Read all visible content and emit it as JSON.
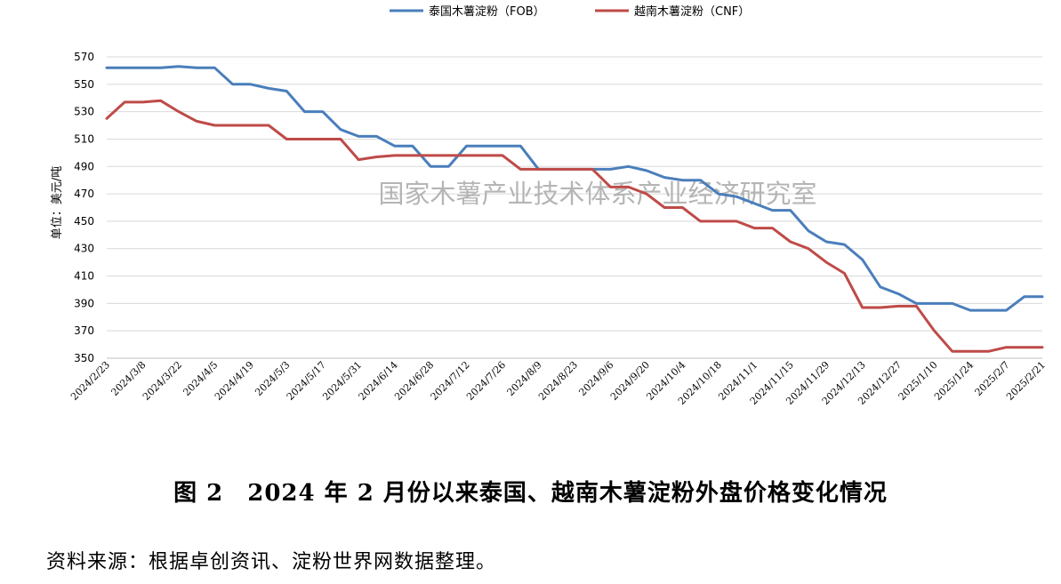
{
  "chart_data": {
    "type": "line",
    "ylabel": "单位：美元/吨",
    "ylim": [
      350,
      570
    ],
    "yticks": [
      350,
      370,
      390,
      410,
      430,
      450,
      470,
      490,
      510,
      530,
      550,
      570
    ],
    "grid": true,
    "legend_position": "top-center",
    "x_tick_labels": [
      "2024/2/23",
      "2024/3/8",
      "2024/3/22",
      "2024/4/5",
      "2024/4/19",
      "2024/5/3",
      "2024/5/17",
      "2024/5/31",
      "2024/6/14",
      "2024/6/28",
      "2024/7/12",
      "2024/7/26",
      "2024/8/9",
      "2024/8/23",
      "2024/9/6",
      "2024/9/20",
      "2024/10/4",
      "2024/10/18",
      "2024/11/1",
      "2024/11/15",
      "2024/11/29",
      "2024/12/13",
      "2024/12/27",
      "2025/1/10",
      "2025/1/24",
      "2025/2/7",
      "2025/2/21"
    ],
    "x": [
      "2024/2/23",
      "2024/3/1",
      "2024/3/8",
      "2024/3/15",
      "2024/3/22",
      "2024/3/29",
      "2024/4/5",
      "2024/4/12",
      "2024/4/19",
      "2024/4/26",
      "2024/5/3",
      "2024/5/10",
      "2024/5/17",
      "2024/5/24",
      "2024/5/31",
      "2024/6/7",
      "2024/6/14",
      "2024/6/21",
      "2024/6/28",
      "2024/7/5",
      "2024/7/12",
      "2024/7/19",
      "2024/7/26",
      "2024/8/2",
      "2024/8/9",
      "2024/8/16",
      "2024/8/23",
      "2024/8/30",
      "2024/9/6",
      "2024/9/13",
      "2024/9/20",
      "2024/9/27",
      "2024/10/4",
      "2024/10/11",
      "2024/10/18",
      "2024/10/25",
      "2024/11/1",
      "2024/11/8",
      "2024/11/15",
      "2024/11/22",
      "2024/11/29",
      "2024/12/6",
      "2024/12/13",
      "2024/12/20",
      "2024/12/27",
      "2025/1/3",
      "2025/1/10",
      "2025/1/17",
      "2025/1/24",
      "2025/1/31",
      "2025/2/7",
      "2025/2/14",
      "2025/2/21"
    ],
    "series": [
      {
        "name": "泰国木薯淀粉（FOB）",
        "color": "#4a7ebb",
        "values": [
          562,
          562,
          562,
          562,
          563,
          562,
          562,
          550,
          550,
          547,
          545,
          530,
          530,
          517,
          512,
          512,
          505,
          505,
          490,
          490,
          505,
          505,
          505,
          505,
          488,
          488,
          488,
          488,
          488,
          490,
          487,
          482,
          480,
          480,
          470,
          468,
          463,
          458,
          458,
          443,
          435,
          433,
          422,
          402,
          397,
          390,
          390,
          390,
          385,
          385,
          385,
          395,
          395
        ]
      },
      {
        "name": "越南木薯淀粉（CNF）",
        "color": "#be4b48",
        "values": [
          525,
          537,
          537,
          538,
          530,
          523,
          520,
          520,
          520,
          520,
          510,
          510,
          510,
          510,
          495,
          497,
          498,
          498,
          498,
          498,
          498,
          498,
          498,
          488,
          488,
          488,
          488,
          488,
          475,
          475,
          470,
          460,
          460,
          450,
          450,
          450,
          445,
          445,
          435,
          430,
          420,
          412,
          387,
          387,
          388,
          388,
          370,
          355,
          355,
          355,
          358,
          358,
          358
        ]
      }
    ]
  },
  "watermark": "国家木薯产业技术体系产业经济研究室",
  "caption": "图 2　2024 年 2 月份以来泰国、越南木薯淀粉外盘价格变化情况",
  "source_note": "资料来源：根据卓创资讯、淀粉世界网数据整理。"
}
